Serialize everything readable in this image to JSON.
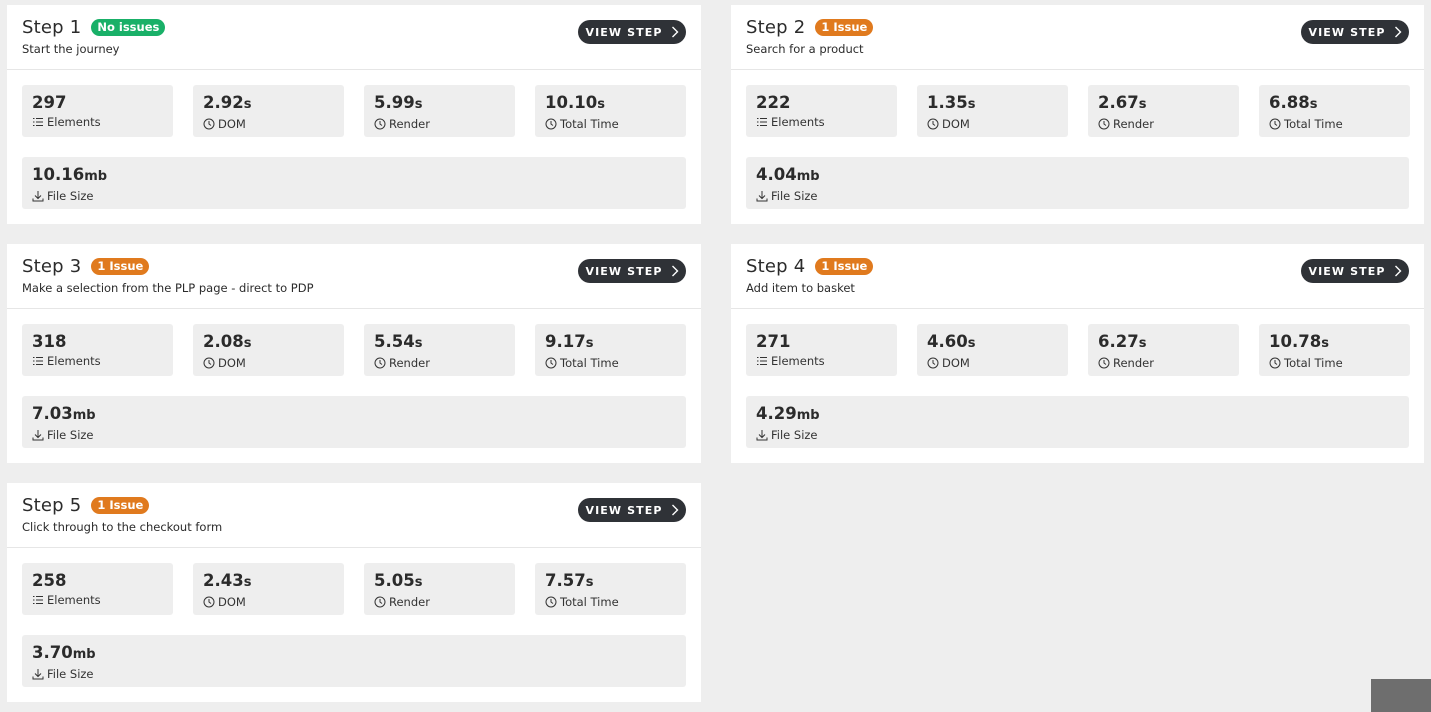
{
  "view_step_label": "VIEW STEP",
  "labels": {
    "elements": "Elements",
    "dom": "DOM",
    "render": "Render",
    "total": "Total Time",
    "filesize": "File Size"
  },
  "steps": [
    {
      "title": "Step 1",
      "badge": "No issues",
      "badge_type": "ok",
      "description": "Start the journey",
      "elements": "297",
      "dom": "2.92",
      "render": "5.99",
      "total": "10.10",
      "filesize": "10.16"
    },
    {
      "title": "Step 2",
      "badge": "1 Issue",
      "badge_type": "warn",
      "description": "Search for a product",
      "elements": "222",
      "dom": "1.35",
      "render": "2.67",
      "total": "6.88",
      "filesize": "4.04"
    },
    {
      "title": "Step 3",
      "badge": "1 Issue",
      "badge_type": "warn",
      "description": "Make a selection from the PLP page - direct to PDP",
      "elements": "318",
      "dom": "2.08",
      "render": "5.54",
      "total": "9.17",
      "filesize": "7.03"
    },
    {
      "title": "Step 4",
      "badge": "1 Issue",
      "badge_type": "warn",
      "description": "Add item to basket",
      "elements": "271",
      "dom": "4.60",
      "render": "6.27",
      "total": "10.78",
      "filesize": "4.29"
    },
    {
      "title": "Step 5",
      "badge": "1 Issue",
      "badge_type": "warn",
      "description": "Click through to the checkout form",
      "elements": "258",
      "dom": "2.43",
      "render": "5.05",
      "total": "7.57",
      "filesize": "3.70"
    }
  ],
  "units": {
    "seconds": "s",
    "megabytes": "mb"
  },
  "colors": {
    "ok_badge": "#19b068",
    "warn_badge": "#e07a1e",
    "button": "#2f3237"
  }
}
